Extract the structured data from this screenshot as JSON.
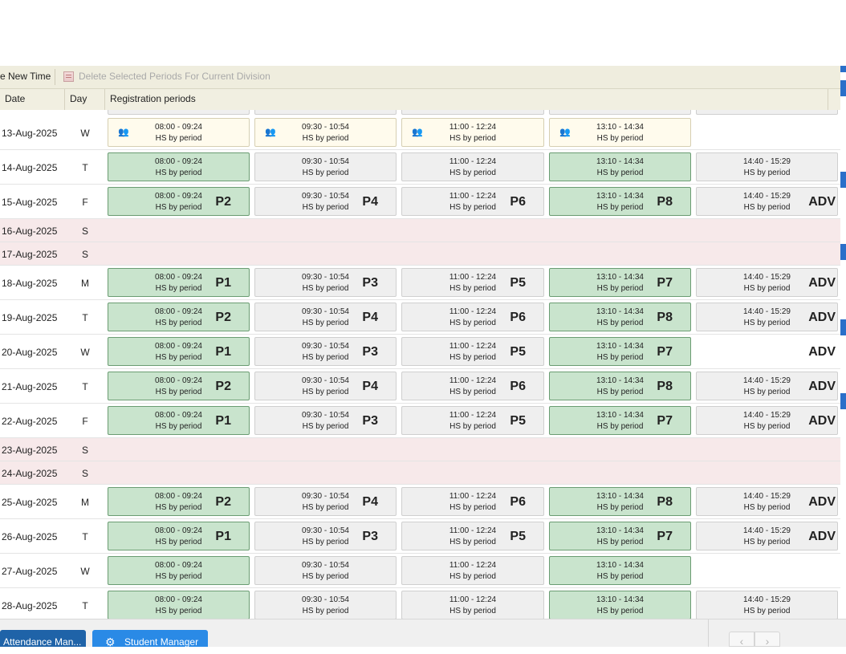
{
  "toolbar": {
    "new_time": "e New Time",
    "delete_label": "Delete Selected Periods For Current Division"
  },
  "header": {
    "date": "Date",
    "day": "Day",
    "periods": "Registration periods"
  },
  "rows": [
    {
      "date": "13-Aug-2025",
      "day": "W",
      "cells": [
        {
          "time": "08:00 - 09:24",
          "sub": "HS by period",
          "label": "",
          "style": "cream",
          "icon": true
        },
        {
          "time": "09:30 - 10:54",
          "sub": "HS by period",
          "label": "",
          "style": "cream",
          "icon": true
        },
        {
          "time": "11:00 - 12:24",
          "sub": "HS by period",
          "label": "",
          "style": "cream",
          "icon": true
        },
        {
          "time": "13:10 - 14:34",
          "sub": "HS by period",
          "label": "",
          "style": "cream",
          "icon": true
        }
      ]
    },
    {
      "date": "14-Aug-2025",
      "day": "T",
      "cells": [
        {
          "time": "08:00 - 09:24",
          "sub": "HS by period",
          "label": "",
          "style": "green"
        },
        {
          "time": "09:30 - 10:54",
          "sub": "HS by period",
          "label": "",
          "style": "grey"
        },
        {
          "time": "11:00 - 12:24",
          "sub": "HS by period",
          "label": "",
          "style": "grey"
        },
        {
          "time": "13:10 - 14:34",
          "sub": "HS by period",
          "label": "",
          "style": "green"
        },
        {
          "time": "14:40 - 15:29",
          "sub": "HS by period",
          "label": "",
          "style": "grey"
        }
      ]
    },
    {
      "date": "15-Aug-2025",
      "day": "F",
      "cells": [
        {
          "time": "08:00 - 09:24",
          "sub": "HS by period",
          "label": "P2",
          "style": "green"
        },
        {
          "time": "09:30 - 10:54",
          "sub": "HS by period",
          "label": "P4",
          "style": "grey"
        },
        {
          "time": "11:00 - 12:24",
          "sub": "HS by period",
          "label": "P6",
          "style": "grey"
        },
        {
          "time": "13:10 - 14:34",
          "sub": "HS by period",
          "label": "P8",
          "style": "green"
        },
        {
          "time": "14:40 - 15:29",
          "sub": "HS by period",
          "label": "ADV",
          "style": "grey"
        }
      ]
    },
    {
      "date": "16-Aug-2025",
      "day": "S",
      "weekend": true,
      "cells": []
    },
    {
      "date": "17-Aug-2025",
      "day": "S",
      "weekend": true,
      "cells": []
    },
    {
      "date": "18-Aug-2025",
      "day": "M",
      "cells": [
        {
          "time": "08:00 - 09:24",
          "sub": "HS by period",
          "label": "P1",
          "style": "green"
        },
        {
          "time": "09:30 - 10:54",
          "sub": "HS by period",
          "label": "P3",
          "style": "grey"
        },
        {
          "time": "11:00 - 12:24",
          "sub": "HS by period",
          "label": "P5",
          "style": "grey"
        },
        {
          "time": "13:10 - 14:34",
          "sub": "HS by period",
          "label": "P7",
          "style": "green"
        },
        {
          "time": "14:40 - 15:29",
          "sub": "HS by period",
          "label": "ADV",
          "style": "grey"
        }
      ]
    },
    {
      "date": "19-Aug-2025",
      "day": "T",
      "cells": [
        {
          "time": "08:00 - 09:24",
          "sub": "HS by period",
          "label": "P2",
          "style": "green"
        },
        {
          "time": "09:30 - 10:54",
          "sub": "HS by period",
          "label": "P4",
          "style": "grey"
        },
        {
          "time": "11:00 - 12:24",
          "sub": "HS by period",
          "label": "P6",
          "style": "grey"
        },
        {
          "time": "13:10 - 14:34",
          "sub": "HS by period",
          "label": "P8",
          "style": "green"
        },
        {
          "time": "14:40 - 15:29",
          "sub": "HS by period",
          "label": "ADV",
          "style": "grey"
        }
      ]
    },
    {
      "date": "20-Aug-2025",
      "day": "W",
      "standalone": "ADV",
      "cells": [
        {
          "time": "08:00 - 09:24",
          "sub": "HS by period",
          "label": "P1",
          "style": "green"
        },
        {
          "time": "09:30 - 10:54",
          "sub": "HS by period",
          "label": "P3",
          "style": "grey"
        },
        {
          "time": "11:00 - 12:24",
          "sub": "HS by period",
          "label": "P5",
          "style": "grey"
        },
        {
          "time": "13:10 - 14:34",
          "sub": "HS by period",
          "label": "P7",
          "style": "green"
        }
      ]
    },
    {
      "date": "21-Aug-2025",
      "day": "T",
      "cells": [
        {
          "time": "08:00 - 09:24",
          "sub": "HS by period",
          "label": "P2",
          "style": "green"
        },
        {
          "time": "09:30 - 10:54",
          "sub": "HS by period",
          "label": "P4",
          "style": "grey"
        },
        {
          "time": "11:00 - 12:24",
          "sub": "HS by period",
          "label": "P6",
          "style": "grey"
        },
        {
          "time": "13:10 - 14:34",
          "sub": "HS by period",
          "label": "P8",
          "style": "green"
        },
        {
          "time": "14:40 - 15:29",
          "sub": "HS by period",
          "label": "ADV",
          "style": "grey"
        }
      ]
    },
    {
      "date": "22-Aug-2025",
      "day": "F",
      "cells": [
        {
          "time": "08:00 - 09:24",
          "sub": "HS by period",
          "label": "P1",
          "style": "green"
        },
        {
          "time": "09:30 - 10:54",
          "sub": "HS by period",
          "label": "P3",
          "style": "grey"
        },
        {
          "time": "11:00 - 12:24",
          "sub": "HS by period",
          "label": "P5",
          "style": "grey"
        },
        {
          "time": "13:10 - 14:34",
          "sub": "HS by period",
          "label": "P7",
          "style": "green"
        },
        {
          "time": "14:40 - 15:29",
          "sub": "HS by period",
          "label": "ADV",
          "style": "grey"
        }
      ]
    },
    {
      "date": "23-Aug-2025",
      "day": "S",
      "weekend": true,
      "cells": []
    },
    {
      "date": "24-Aug-2025",
      "day": "S",
      "weekend": true,
      "cells": []
    },
    {
      "date": "25-Aug-2025",
      "day": "M",
      "cells": [
        {
          "time": "08:00 - 09:24",
          "sub": "HS by period",
          "label": "P2",
          "style": "green"
        },
        {
          "time": "09:30 - 10:54",
          "sub": "HS by period",
          "label": "P4",
          "style": "grey"
        },
        {
          "time": "11:00 - 12:24",
          "sub": "HS by period",
          "label": "P6",
          "style": "grey"
        },
        {
          "time": "13:10 - 14:34",
          "sub": "HS by period",
          "label": "P8",
          "style": "green"
        },
        {
          "time": "14:40 - 15:29",
          "sub": "HS by period",
          "label": "ADV",
          "style": "grey"
        }
      ]
    },
    {
      "date": "26-Aug-2025",
      "day": "T",
      "cells": [
        {
          "time": "08:00 - 09:24",
          "sub": "HS by period",
          "label": "P1",
          "style": "green"
        },
        {
          "time": "09:30 - 10:54",
          "sub": "HS by period",
          "label": "P3",
          "style": "grey"
        },
        {
          "time": "11:00 - 12:24",
          "sub": "HS by period",
          "label": "P5",
          "style": "grey"
        },
        {
          "time": "13:10 - 14:34",
          "sub": "HS by period",
          "label": "P7",
          "style": "green"
        },
        {
          "time": "14:40 - 15:29",
          "sub": "HS by period",
          "label": "ADV",
          "style": "grey"
        }
      ]
    },
    {
      "date": "27-Aug-2025",
      "day": "W",
      "cells": [
        {
          "time": "08:00 - 09:24",
          "sub": "HS by period",
          "label": "",
          "style": "green"
        },
        {
          "time": "09:30 - 10:54",
          "sub": "HS by period",
          "label": "",
          "style": "grey"
        },
        {
          "time": "11:00 - 12:24",
          "sub": "HS by period",
          "label": "",
          "style": "grey"
        },
        {
          "time": "13:10 - 14:34",
          "sub": "HS by period",
          "label": "",
          "style": "green"
        }
      ]
    },
    {
      "date": "28-Aug-2025",
      "day": "T",
      "cells": [
        {
          "time": "08:00 - 09:24",
          "sub": "HS by period",
          "label": "",
          "style": "green"
        },
        {
          "time": "09:30 - 10:54",
          "sub": "HS by period",
          "label": "",
          "style": "grey"
        },
        {
          "time": "11:00 - 12:24",
          "sub": "HS by period",
          "label": "",
          "style": "grey"
        },
        {
          "time": "13:10 - 14:34",
          "sub": "HS by period",
          "label": "",
          "style": "green"
        },
        {
          "time": "14:40 - 15:29",
          "sub": "HS by period",
          "label": "",
          "style": "grey"
        }
      ]
    }
  ],
  "bottom": {
    "attendance_label": "Attendance Man...",
    "student_label": "Student Manager",
    "prev_glyph": "‹",
    "next_glyph": "›"
  },
  "icons": {
    "gear": "gear-icon",
    "delete": "delete-periods-icon",
    "register": "register-icon"
  }
}
